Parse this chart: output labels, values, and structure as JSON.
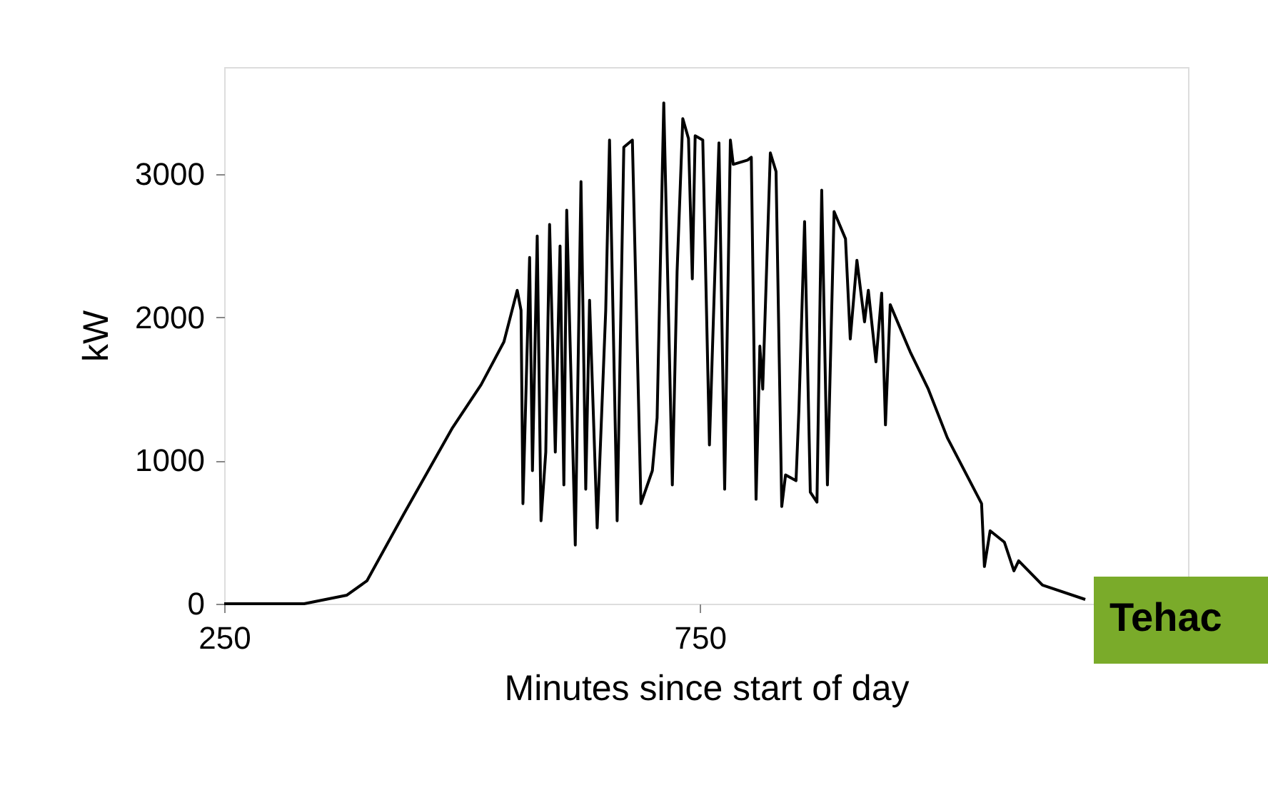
{
  "chart_data": {
    "type": "line",
    "xlabel": "Minutes since start of day",
    "ylabel": "kW",
    "xlim": [
      250,
      1263
    ],
    "xticks": [
      250,
      750
    ],
    "ylim": [
      0,
      3750
    ],
    "yticks": [
      0,
      1000,
      2000,
      3000
    ],
    "grid": false,
    "marker": "none",
    "line_style": "solid",
    "annotations": [
      "Tehac"
    ],
    "series": [
      {
        "color": "#000000",
        "x": [
          250,
          334,
          379,
          400,
          439,
          490,
          520,
          544,
          558,
          562,
          564,
          571,
          574,
          579,
          583,
          588,
          592,
          598,
          603,
          607,
          610,
          619,
          625,
          630,
          634,
          642,
          651,
          655,
          663,
          670,
          679,
          688,
          700,
          705,
          712,
          721,
          726,
          732,
          738,
          742,
          745,
          753,
          760,
          770,
          776,
          782,
          785,
          800,
          804,
          809,
          813,
          816,
          824,
          830,
          836,
          840,
          851,
          854,
          860,
          866,
          873,
          878,
          884,
          891,
          903,
          908,
          915,
          923,
          927,
          935,
          941,
          945,
          950,
          971,
          990,
          1010,
          1046,
          1049,
          1055,
          1070,
          1080,
          1085,
          1110,
          1155
        ],
        "values": [
          0,
          0,
          60,
          160,
          630,
          1230,
          1530,
          1830,
          2190,
          2050,
          700,
          2420,
          930,
          2570,
          580,
          1060,
          2650,
          1060,
          2500,
          830,
          2750,
          410,
          2950,
          800,
          2120,
          530,
          2050,
          3240,
          580,
          3190,
          3240,
          700,
          930,
          1300,
          3500,
          830,
          2320,
          3390,
          3250,
          2270,
          3270,
          3240,
          1110,
          3220,
          800,
          3240,
          3070,
          3100,
          3120,
          730,
          1800,
          1500,
          3150,
          3020,
          680,
          900,
          860,
          1350,
          2670,
          780,
          710,
          2890,
          830,
          2740,
          2550,
          1850,
          2400,
          1970,
          2190,
          1690,
          2170,
          1250,
          2090,
          1760,
          1500,
          1160,
          700,
          260,
          510,
          430,
          230,
          300,
          130,
          30
        ]
      }
    ]
  }
}
